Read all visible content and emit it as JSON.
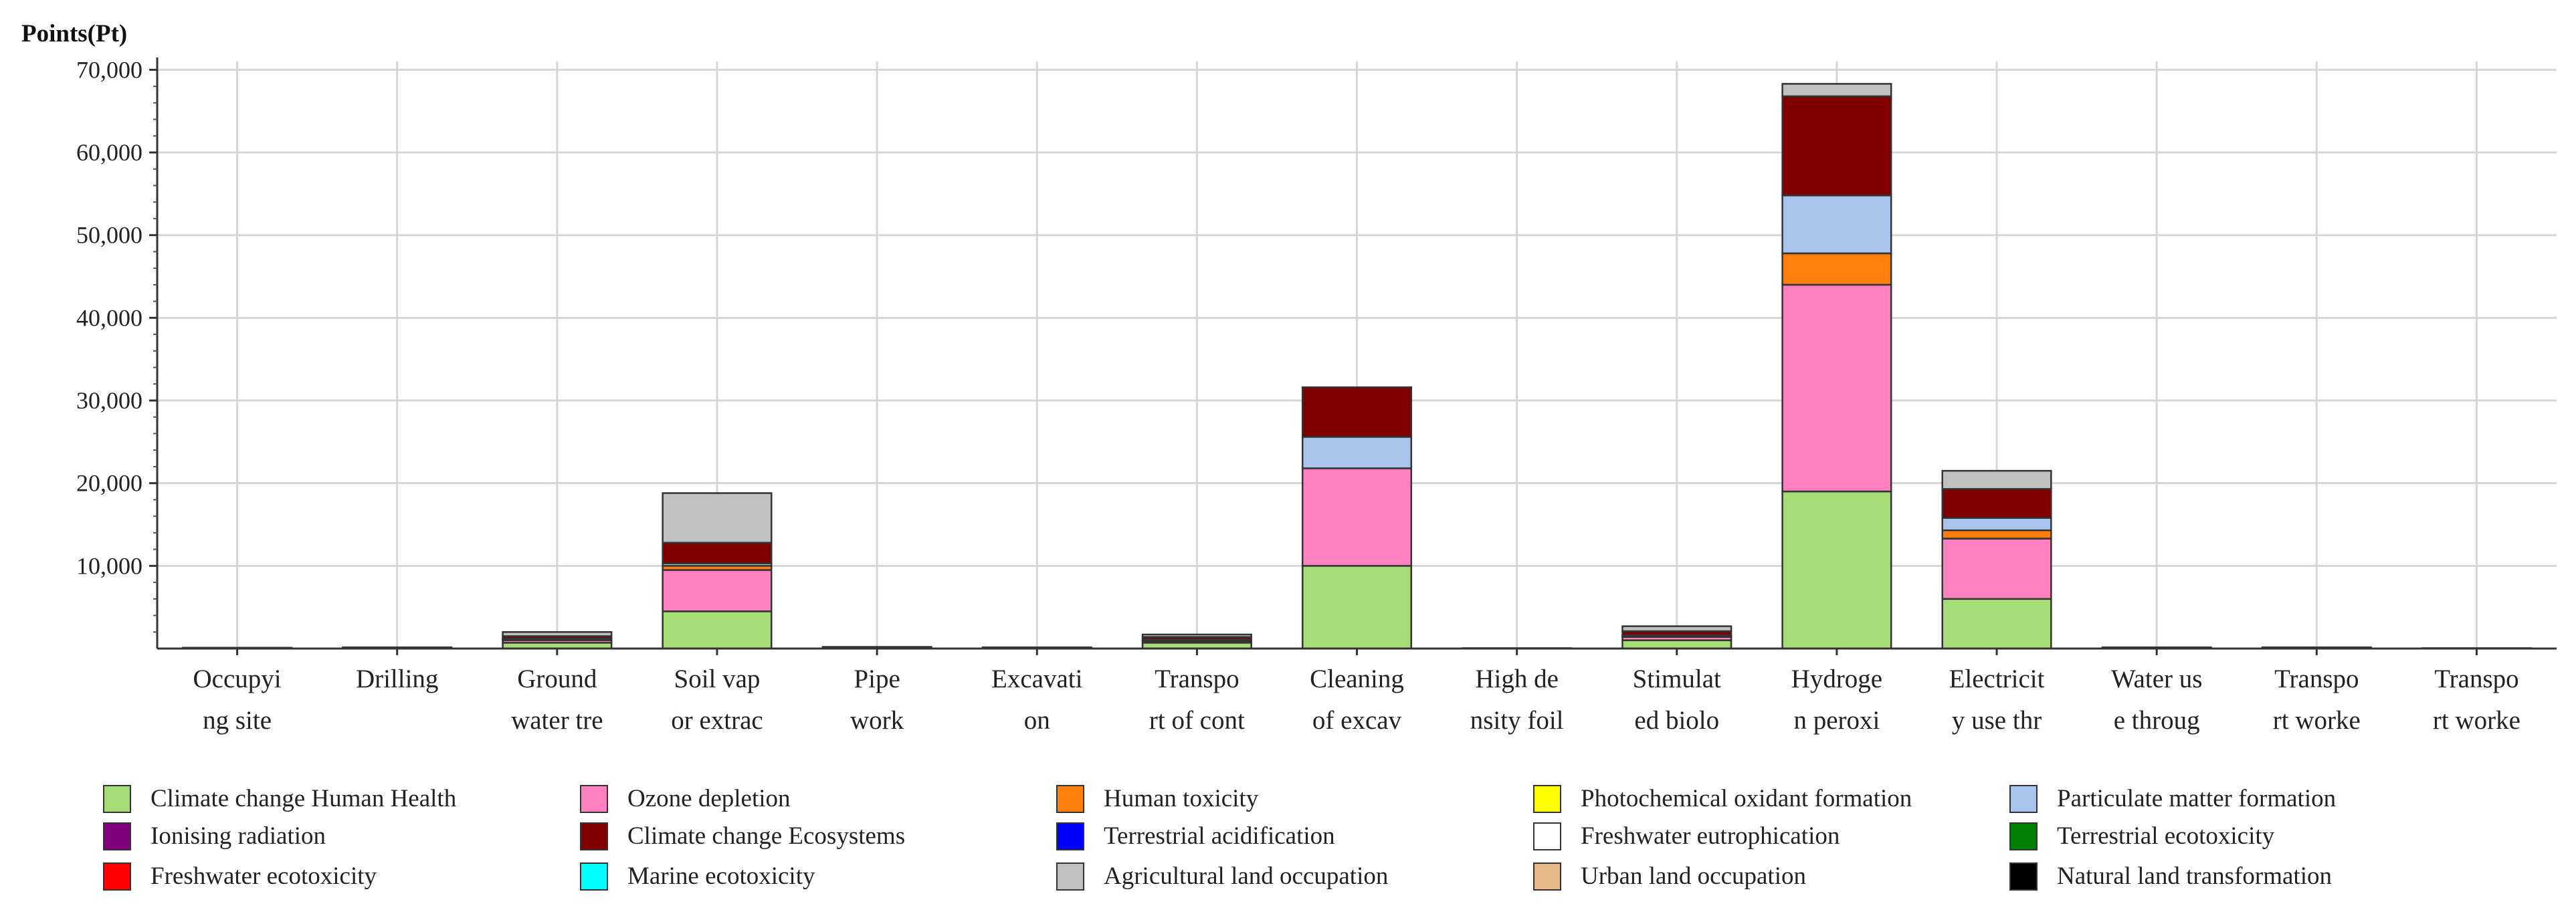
{
  "chart_data": {
    "type": "bar",
    "stacked": true,
    "unit_label": "Points(Pt)",
    "xlabel": "",
    "ylabel": "",
    "ylim": [
      0,
      71000
    ],
    "y_ticks": [
      10000,
      20000,
      30000,
      40000,
      50000,
      60000,
      70000
    ],
    "y_tick_labels": [
      "10,000",
      "20,000",
      "30,000",
      "40,000",
      "50,000",
      "60,000",
      "70,000"
    ],
    "grid": true,
    "legend_position": "bottom",
    "categories": [
      [
        "Occupyi",
        "ng site"
      ],
      [
        "Drilling",
        ""
      ],
      [
        "Ground",
        "water tre"
      ],
      [
        "Soil vap",
        "or extrac"
      ],
      [
        "Pipe",
        "work"
      ],
      [
        "Excavati",
        "on"
      ],
      [
        "Transpo",
        "rt of cont"
      ],
      [
        "Cleaning",
        "of excav"
      ],
      [
        "High de",
        "nsity foil"
      ],
      [
        "Stimulat",
        "ed biolo"
      ],
      [
        "Hydroge",
        "n peroxi"
      ],
      [
        "Electricit",
        "y use thr"
      ],
      [
        "Water us",
        "e throug"
      ],
      [
        "Transpo",
        "rt worke"
      ],
      [
        "Transpo",
        "rt worke"
      ]
    ],
    "series": [
      {
        "name": "Climate change Human Health",
        "color": "#a6dc75",
        "values": [
          100,
          150,
          700,
          4500,
          100,
          150,
          700,
          10000,
          50,
          1000,
          19000,
          6000,
          150,
          150,
          50
        ]
      },
      {
        "name": "Ozone depletion",
        "color": "#ff80c0",
        "values": [
          0,
          0,
          300,
          5000,
          100,
          0,
          200,
          11800,
          0,
          400,
          25000,
          7300,
          0,
          0,
          0
        ]
      },
      {
        "name": "Human toxicity",
        "color": "#ff7f0e",
        "values": [
          0,
          0,
          100,
          500,
          0,
          0,
          100,
          0,
          0,
          100,
          3800,
          1000,
          0,
          0,
          0
        ]
      },
      {
        "name": "Photochemical oxidant formation",
        "color": "#ffff00",
        "values": [
          0,
          0,
          0,
          0,
          0,
          0,
          0,
          0,
          0,
          0,
          0,
          0,
          0,
          0,
          0
        ]
      },
      {
        "name": "Particulate matter formation",
        "color": "#a9c4ec",
        "values": [
          0,
          0,
          100,
          300,
          0,
          0,
          100,
          3800,
          0,
          100,
          7000,
          1500,
          0,
          0,
          0
        ]
      },
      {
        "name": "Ionising radiation",
        "color": "#800080",
        "values": [
          0,
          0,
          0,
          0,
          0,
          0,
          0,
          0,
          0,
          0,
          0,
          0,
          0,
          0,
          0
        ]
      },
      {
        "name": "Climate change Ecosystems",
        "color": "#800000",
        "values": [
          0,
          0,
          300,
          2500,
          0,
          0,
          300,
          6000,
          0,
          500,
          12000,
          3500,
          0,
          0,
          0
        ]
      },
      {
        "name": "Terrestrial acidification",
        "color": "#0000ff",
        "values": [
          0,
          0,
          0,
          0,
          0,
          0,
          0,
          0,
          0,
          0,
          0,
          0,
          0,
          0,
          0
        ]
      },
      {
        "name": "Freshwater eutrophication",
        "color": "#ffffff",
        "values": [
          0,
          0,
          0,
          0,
          0,
          0,
          0,
          0,
          0,
          0,
          0,
          0,
          0,
          0,
          0
        ]
      },
      {
        "name": "Terrestrial ecotoxicity",
        "color": "#008000",
        "values": [
          0,
          0,
          0,
          0,
          0,
          0,
          0,
          0,
          0,
          0,
          0,
          0,
          0,
          0,
          0
        ]
      },
      {
        "name": "Freshwater ecotoxicity",
        "color": "#ff0000",
        "values": [
          0,
          0,
          0,
          0,
          0,
          0,
          0,
          0,
          0,
          0,
          0,
          0,
          0,
          0,
          0
        ]
      },
      {
        "name": "Marine ecotoxicity",
        "color": "#00ffff",
        "values": [
          0,
          0,
          0,
          0,
          0,
          0,
          0,
          0,
          0,
          0,
          0,
          0,
          0,
          0,
          0
        ]
      },
      {
        "name": "Agricultural land occupation",
        "color": "#c0c0c0",
        "values": [
          0,
          0,
          500,
          6000,
          0,
          0,
          300,
          0,
          0,
          600,
          1500,
          2200,
          0,
          0,
          0
        ]
      },
      {
        "name": "Urban land occupation",
        "color": "#e6b88a",
        "values": [
          0,
          0,
          0,
          0,
          0,
          0,
          0,
          0,
          0,
          0,
          0,
          0,
          0,
          0,
          0
        ]
      },
      {
        "name": "Natural land transformation",
        "color": "#000000",
        "values": [
          0,
          0,
          0,
          0,
          0,
          0,
          0,
          0,
          0,
          0,
          0,
          0,
          0,
          0,
          0
        ]
      }
    ]
  }
}
